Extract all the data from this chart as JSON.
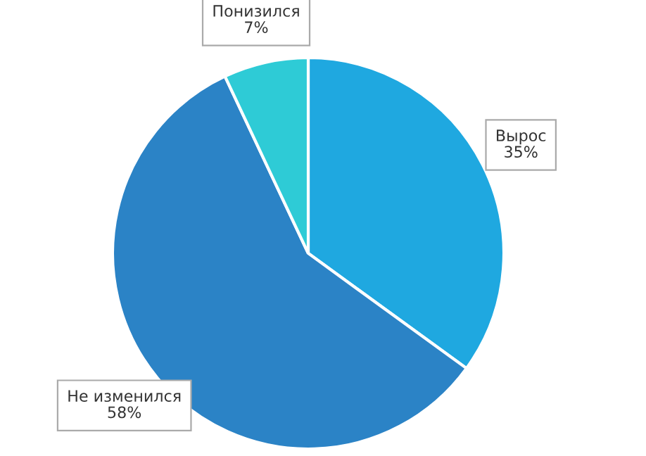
{
  "chart_data": {
    "type": "pie",
    "categories": [
      "Вырос",
      "Не изменился",
      "Понизился"
    ],
    "values": [
      35,
      58,
      7
    ],
    "value_labels": [
      "35%",
      "58%",
      "7%"
    ],
    "colors": [
      "#1fa8e0",
      "#2b83c6",
      "#2ecbd6"
    ],
    "legend": false
  }
}
